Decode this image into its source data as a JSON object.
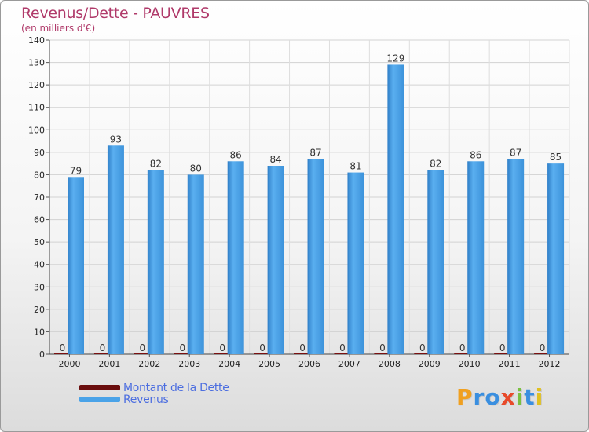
{
  "header": {
    "title": "Revenus/Dette - PAUVRES",
    "subtitle": "(en milliers d'€)"
  },
  "chart_data": {
    "type": "bar",
    "title": "Revenus/Dette - PAUVRES",
    "ylabel": "(en milliers d'€)",
    "xlabel": "",
    "categories": [
      "2000",
      "2001",
      "2002",
      "2003",
      "2004",
      "2005",
      "2006",
      "2007",
      "2008",
      "2009",
      "2010",
      "2011",
      "2012"
    ],
    "ylim": [
      0,
      140
    ],
    "yticks": [
      0,
      10,
      20,
      30,
      40,
      50,
      60,
      70,
      80,
      90,
      100,
      110,
      120,
      130,
      140
    ],
    "grid": true,
    "series": [
      {
        "name": "Montant de la Dette",
        "color": "#7a1010",
        "values": [
          0,
          0,
          0,
          0,
          0,
          0,
          0,
          0,
          0,
          0,
          0,
          0,
          0
        ]
      },
      {
        "name": "Revenus",
        "color": "#4aa3e8",
        "values": [
          79,
          93,
          82,
          80,
          86,
          84,
          87,
          81,
          129,
          82,
          86,
          87,
          85
        ]
      }
    ],
    "legend_position": "bottom-left"
  },
  "logo": {
    "letters": [
      "P",
      "r",
      "o",
      "x",
      "i",
      "t",
      "i"
    ],
    "colors": [
      "#f0a020",
      "#3a8fe0",
      "#3a8fe0",
      "#e84a2a",
      "#7ac040",
      "#3a8fe0",
      "#e0c020"
    ]
  }
}
